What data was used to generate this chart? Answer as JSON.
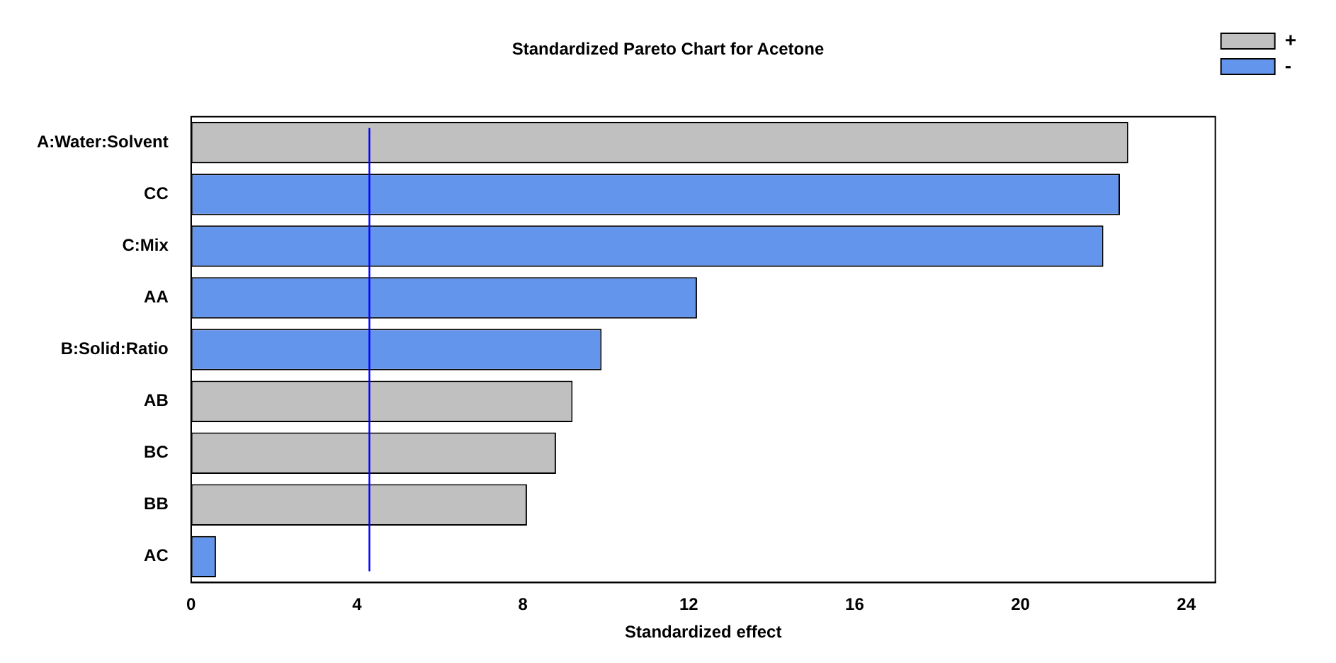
{
  "chart_data": {
    "type": "bar",
    "orientation": "horizontal",
    "stacked": true,
    "title": "Standardized Pareto Chart for Acetone",
    "xlabel": "Standardized effect",
    "categories": [
      "A:Water:Solvent",
      "CC",
      "C:Mix",
      "AA",
      "B:Solid:Ratio",
      "AB",
      "BC",
      "BB",
      "AC"
    ],
    "series": [
      {
        "name": "+",
        "color": "#c0c0c0",
        "values": [
          22.6,
          null,
          null,
          null,
          null,
          9.2,
          8.8,
          8.1,
          null
        ]
      },
      {
        "name": "-",
        "color": "#6495ed",
        "values": [
          null,
          22.4,
          22.0,
          12.2,
          9.9,
          null,
          null,
          null,
          0.6
        ]
      }
    ],
    "xlim": [
      0,
      24.7
    ],
    "xticks": [
      0,
      4,
      8,
      12,
      16,
      20,
      24
    ],
    "grid": false,
    "legend": "top right",
    "ref_lines": [
      {
        "axis": "x",
        "value": 4.3,
        "color": "#0000ff"
      }
    ]
  }
}
